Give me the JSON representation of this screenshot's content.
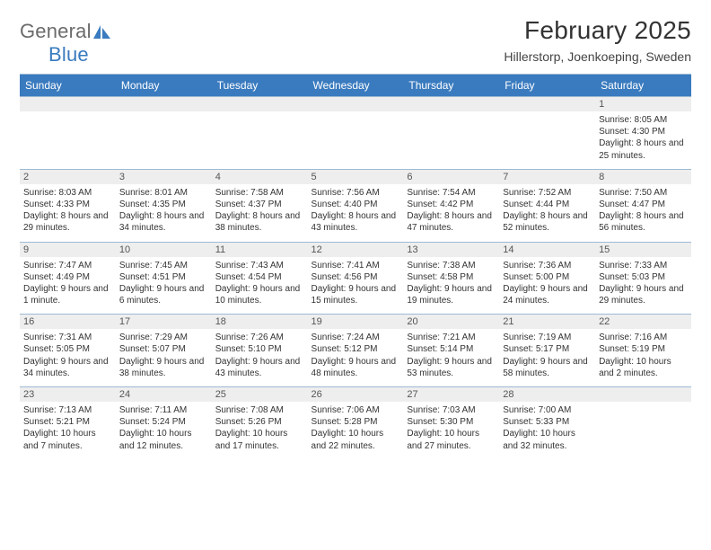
{
  "brand": {
    "text1": "General",
    "text2": "Blue",
    "color1": "#6b6b6b",
    "color2": "#3a7bbf"
  },
  "title": "February 2025",
  "subtitle": "Hillerstorp, Joenkoeping, Sweden",
  "colors": {
    "header_bg": "#3a7bbf",
    "header_text": "#ffffff",
    "daynum_bg": "#eeeeee",
    "rule": "#9eb9d3",
    "body_text": "#333333"
  },
  "day_headers": [
    "Sunday",
    "Monday",
    "Tuesday",
    "Wednesday",
    "Thursday",
    "Friday",
    "Saturday"
  ],
  "weeks": [
    [
      {
        "num": "",
        "text": ""
      },
      {
        "num": "",
        "text": ""
      },
      {
        "num": "",
        "text": ""
      },
      {
        "num": "",
        "text": ""
      },
      {
        "num": "",
        "text": ""
      },
      {
        "num": "",
        "text": ""
      },
      {
        "num": "1",
        "text": "Sunrise: 8:05 AM\nSunset: 4:30 PM\nDaylight: 8 hours and 25 minutes."
      }
    ],
    [
      {
        "num": "2",
        "text": "Sunrise: 8:03 AM\nSunset: 4:33 PM\nDaylight: 8 hours and 29 minutes."
      },
      {
        "num": "3",
        "text": "Sunrise: 8:01 AM\nSunset: 4:35 PM\nDaylight: 8 hours and 34 minutes."
      },
      {
        "num": "4",
        "text": "Sunrise: 7:58 AM\nSunset: 4:37 PM\nDaylight: 8 hours and 38 minutes."
      },
      {
        "num": "5",
        "text": "Sunrise: 7:56 AM\nSunset: 4:40 PM\nDaylight: 8 hours and 43 minutes."
      },
      {
        "num": "6",
        "text": "Sunrise: 7:54 AM\nSunset: 4:42 PM\nDaylight: 8 hours and 47 minutes."
      },
      {
        "num": "7",
        "text": "Sunrise: 7:52 AM\nSunset: 4:44 PM\nDaylight: 8 hours and 52 minutes."
      },
      {
        "num": "8",
        "text": "Sunrise: 7:50 AM\nSunset: 4:47 PM\nDaylight: 8 hours and 56 minutes."
      }
    ],
    [
      {
        "num": "9",
        "text": "Sunrise: 7:47 AM\nSunset: 4:49 PM\nDaylight: 9 hours and 1 minute."
      },
      {
        "num": "10",
        "text": "Sunrise: 7:45 AM\nSunset: 4:51 PM\nDaylight: 9 hours and 6 minutes."
      },
      {
        "num": "11",
        "text": "Sunrise: 7:43 AM\nSunset: 4:54 PM\nDaylight: 9 hours and 10 minutes."
      },
      {
        "num": "12",
        "text": "Sunrise: 7:41 AM\nSunset: 4:56 PM\nDaylight: 9 hours and 15 minutes."
      },
      {
        "num": "13",
        "text": "Sunrise: 7:38 AM\nSunset: 4:58 PM\nDaylight: 9 hours and 19 minutes."
      },
      {
        "num": "14",
        "text": "Sunrise: 7:36 AM\nSunset: 5:00 PM\nDaylight: 9 hours and 24 minutes."
      },
      {
        "num": "15",
        "text": "Sunrise: 7:33 AM\nSunset: 5:03 PM\nDaylight: 9 hours and 29 minutes."
      }
    ],
    [
      {
        "num": "16",
        "text": "Sunrise: 7:31 AM\nSunset: 5:05 PM\nDaylight: 9 hours and 34 minutes."
      },
      {
        "num": "17",
        "text": "Sunrise: 7:29 AM\nSunset: 5:07 PM\nDaylight: 9 hours and 38 minutes."
      },
      {
        "num": "18",
        "text": "Sunrise: 7:26 AM\nSunset: 5:10 PM\nDaylight: 9 hours and 43 minutes."
      },
      {
        "num": "19",
        "text": "Sunrise: 7:24 AM\nSunset: 5:12 PM\nDaylight: 9 hours and 48 minutes."
      },
      {
        "num": "20",
        "text": "Sunrise: 7:21 AM\nSunset: 5:14 PM\nDaylight: 9 hours and 53 minutes."
      },
      {
        "num": "21",
        "text": "Sunrise: 7:19 AM\nSunset: 5:17 PM\nDaylight: 9 hours and 58 minutes."
      },
      {
        "num": "22",
        "text": "Sunrise: 7:16 AM\nSunset: 5:19 PM\nDaylight: 10 hours and 2 minutes."
      }
    ],
    [
      {
        "num": "23",
        "text": "Sunrise: 7:13 AM\nSunset: 5:21 PM\nDaylight: 10 hours and 7 minutes."
      },
      {
        "num": "24",
        "text": "Sunrise: 7:11 AM\nSunset: 5:24 PM\nDaylight: 10 hours and 12 minutes."
      },
      {
        "num": "25",
        "text": "Sunrise: 7:08 AM\nSunset: 5:26 PM\nDaylight: 10 hours and 17 minutes."
      },
      {
        "num": "26",
        "text": "Sunrise: 7:06 AM\nSunset: 5:28 PM\nDaylight: 10 hours and 22 minutes."
      },
      {
        "num": "27",
        "text": "Sunrise: 7:03 AM\nSunset: 5:30 PM\nDaylight: 10 hours and 27 minutes."
      },
      {
        "num": "28",
        "text": "Sunrise: 7:00 AM\nSunset: 5:33 PM\nDaylight: 10 hours and 32 minutes."
      },
      {
        "num": "",
        "text": ""
      }
    ]
  ]
}
